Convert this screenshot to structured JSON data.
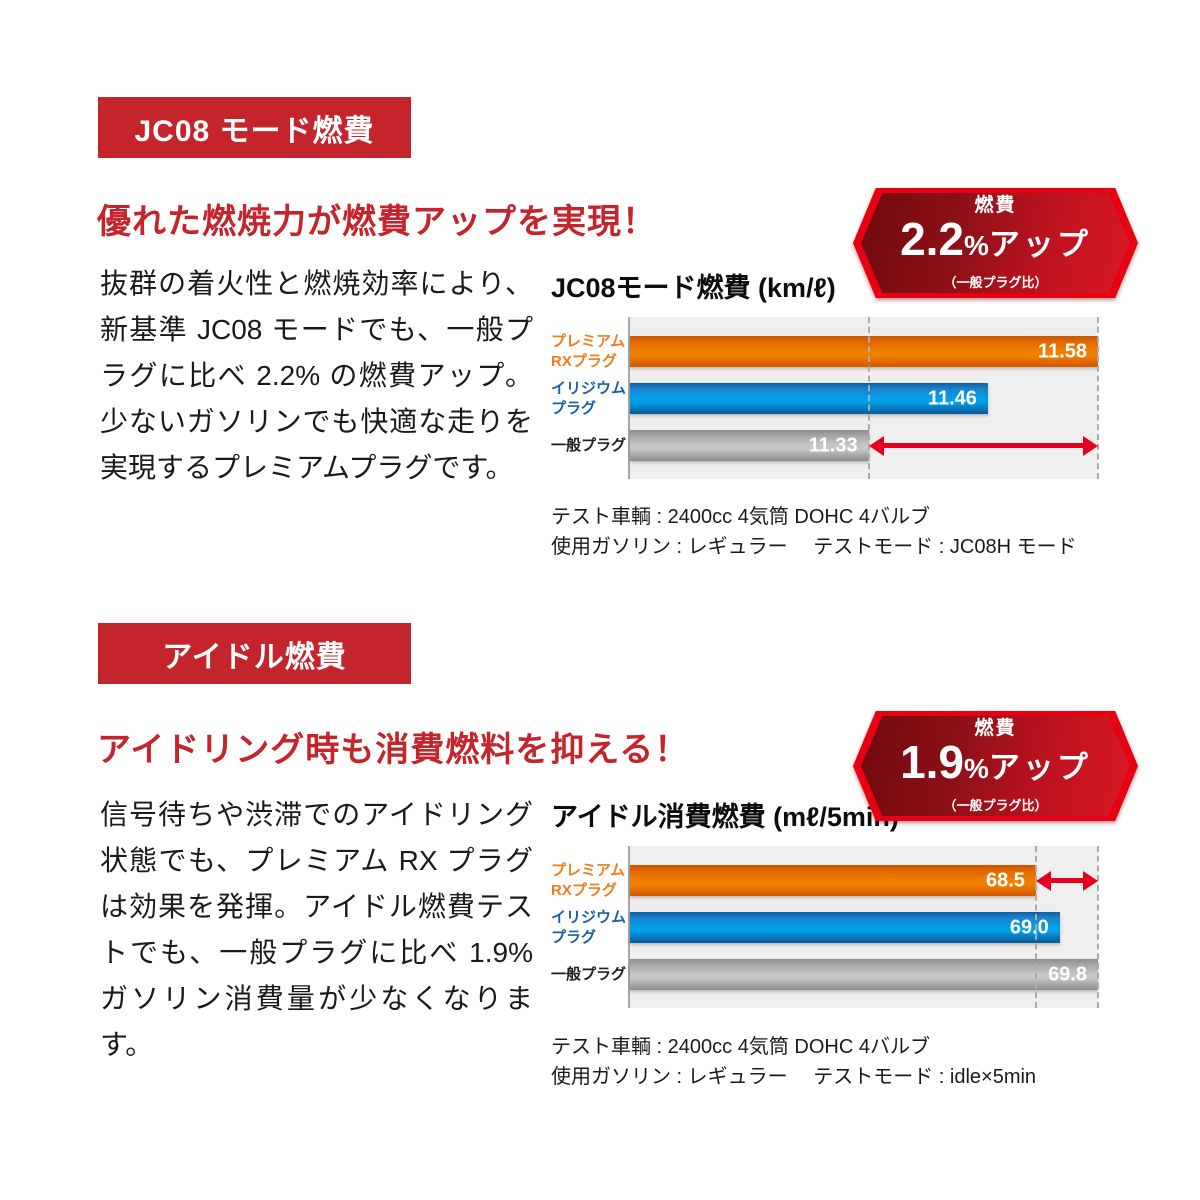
{
  "colors": {
    "accent_red": "#c4242c",
    "hex_border_red": "#e60012",
    "hex_fill_dark": "#6f0a0f",
    "hex_fill_bright": "#da1824",
    "arrow_red": "#e50021",
    "bar_orange": "#ef7e00",
    "bar_blue": "#00a0e9",
    "bar_gray": "#c6c6c6",
    "label_orange": "#ef7d1d",
    "label_blue": "#1d5fa5",
    "plot_bg": "#efeff0"
  },
  "sections": [
    {
      "badge": "JC08 モード燃費",
      "heading": "優れた燃焼力が燃費アップを実現！",
      "body": "抜群の着火性と燃焼効率により、新基準 JC08 モードでも、一般プラグに比べ 2.2% の燃費アップ。少ないガソリンでも快適な走りを実現するプレミアムプラグです。",
      "hexagon": {
        "label": "燃費",
        "value": "2.2",
        "percent": "%",
        "suffix": "アップ",
        "note": "（一般プラグ比）"
      },
      "footnote_line1": "テスト車輌 : 2400cc 4気筒 DOHC 4バルブ",
      "footnote_line2": "使用ガソリン : レギュラー　 テストモード : JC08H モード"
    },
    {
      "badge": "アイドル燃費",
      "heading": "アイドリング時も消費燃料を抑える！",
      "body": "信号待ちや渋滞でのアイドリング状態でも、プレミアム RX プラグは効果を発揮。アイドル燃費テストでも、一般プラグに比べ 1.9% ガソリン消費量が少なくなります。",
      "hexagon": {
        "label": "燃費",
        "value": "1.9",
        "percent": "%",
        "suffix": "アップ",
        "note": "（一般プラグ比）"
      },
      "footnote_line1": "テスト車輌 : 2400cc 4気筒 DOHC 4バルブ",
      "footnote_line2": "使用ガソリン : レギュラー　 テストモード : idle×5min"
    }
  ],
  "chart_data": [
    {
      "type": "bar",
      "orientation": "horizontal",
      "title": "JC08モード燃費 (km/ℓ)",
      "unit": "km/ℓ",
      "categories": [
        [
          "プレミアム",
          "RXプラグ"
        ],
        [
          "イリジウム",
          "プラグ"
        ],
        [
          "一般プラグ"
        ]
      ],
      "values": [
        11.58,
        11.46,
        11.33
      ],
      "value_labels": [
        "11.58",
        "11.46",
        "11.33"
      ],
      "series_colors": [
        "orange",
        "blue",
        "gray"
      ],
      "xlim": [
        11.07,
        11.58
      ],
      "grid": false,
      "legend": "none",
      "dashed_lines_at": [
        11.33,
        11.58
      ],
      "arrow": {
        "from": 11.33,
        "to": 11.58,
        "row_index": 2
      }
    },
    {
      "type": "bar",
      "orientation": "horizontal",
      "title": "アイドル消費燃費 (mℓ/5min)",
      "unit": "mℓ/5min",
      "categories": [
        [
          "プレミアム",
          "RXプラグ"
        ],
        [
          "イリジウム",
          "プラグ"
        ],
        [
          "一般プラグ"
        ]
      ],
      "values": [
        68.5,
        69.0,
        69.8
      ],
      "value_labels": [
        "68.5",
        "69.0",
        "69.8"
      ],
      "series_colors": [
        "orange",
        "blue",
        "gray"
      ],
      "xlim": [
        60.0,
        69.8
      ],
      "grid": false,
      "legend": "none",
      "dashed_lines_at": [
        68.5,
        69.8
      ],
      "arrow": {
        "from": 68.5,
        "to": 69.8,
        "row_index": 0
      }
    }
  ]
}
